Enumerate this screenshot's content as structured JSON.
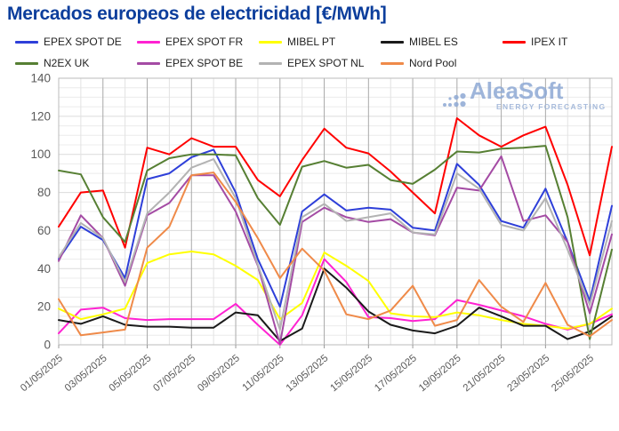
{
  "page": {
    "title": "Mercados europeos de electricidad [€/MWh]"
  },
  "watermark": {
    "brand": "AleaSoft",
    "tagline": "ENERGY FORECASTING",
    "color": "#8ea9d4"
  },
  "chart_data": {
    "type": "line",
    "title": "Mercados europeos de electricidad [€/MWh]",
    "xlabel": "",
    "ylabel": "€/MWh",
    "ylim": [
      0,
      140
    ],
    "y_ticks": [
      0,
      20,
      40,
      60,
      80,
      100,
      120,
      140
    ],
    "grid": {
      "horizontal_minor_step": 5,
      "vertical_daily": true,
      "darker_every_2_days": true
    },
    "legend_position": "top",
    "x": [
      "01/05/2025",
      "02/05/2025",
      "03/05/2025",
      "04/05/2025",
      "05/05/2025",
      "06/05/2025",
      "07/05/2025",
      "08/05/2025",
      "09/05/2025",
      "10/05/2025",
      "11/05/2025",
      "12/05/2025",
      "13/05/2025",
      "14/05/2025",
      "15/05/2025",
      "16/05/2025",
      "17/05/2025",
      "18/05/2025",
      "19/05/2025",
      "20/05/2025",
      "21/05/2025",
      "22/05/2025",
      "23/05/2025",
      "24/05/2025",
      "25/05/2025",
      "26/05/2025"
    ],
    "x_tick_labels": [
      "01/05/2025",
      "03/05/2025",
      "05/05/2025",
      "07/05/2025",
      "09/05/2025",
      "11/05/2025",
      "13/05/2025",
      "15/05/2025",
      "17/05/2025",
      "19/05/2025",
      "21/05/2025",
      "23/05/2025",
      "25/05/2025"
    ],
    "series": [
      {
        "name": "EPEX SPOT DE",
        "color": "#2e3fd9",
        "values": [
          45,
          62,
          55,
          35,
          87,
          90,
          98.5,
          102.5,
          80,
          45,
          20,
          70,
          79,
          70.5,
          72,
          71,
          61.5,
          60,
          95,
          84,
          65,
          61.5,
          82,
          54,
          23,
          73
        ]
      },
      {
        "name": "EPEX SPOT FR",
        "color": "#ff22d2",
        "values": [
          6,
          18.5,
          19.5,
          14,
          13,
          13.5,
          13.5,
          13.5,
          21.5,
          10.5,
          0,
          15.5,
          45,
          33,
          14.5,
          14,
          12.5,
          13.5,
          23.5,
          21,
          18,
          15,
          11,
          8,
          11,
          16
        ]
      },
      {
        "name": "MIBEL PT",
        "color": "#ffff00",
        "values": [
          19,
          13.5,
          16,
          19,
          43,
          47.5,
          49,
          47.5,
          41.5,
          34,
          13.5,
          22,
          48.5,
          41.5,
          33.5,
          16.5,
          15,
          14.5,
          17,
          15.5,
          13,
          11,
          10,
          8.5,
          11,
          19
        ]
      },
      {
        "name": "MIBEL ES",
        "color": "#1a1a1a",
        "values": [
          13,
          11,
          15,
          10.5,
          9.5,
          9.5,
          9,
          9,
          17,
          15.5,
          2,
          8.5,
          40,
          30,
          17.5,
          10.5,
          7.5,
          6,
          10,
          19.5,
          15,
          10,
          10,
          3,
          7,
          15
        ]
      },
      {
        "name": "IPEX IT",
        "color": "#ff0000",
        "values": [
          62,
          80,
          81,
          51,
          103.5,
          100,
          108.5,
          104,
          104,
          86.5,
          78,
          97,
          113.5,
          103.5,
          100.5,
          91,
          80,
          69,
          119,
          110,
          104,
          110,
          114.5,
          84,
          47,
          104
        ]
      },
      {
        "name": "N2EX UK",
        "color": "#567f33",
        "values": [
          91.5,
          89.5,
          67,
          54,
          91.5,
          98,
          100,
          100,
          99.5,
          77,
          63,
          93.5,
          96.5,
          93,
          94.5,
          86.5,
          84.5,
          92,
          101.5,
          101,
          103,
          103.5,
          104.5,
          67,
          3,
          50
        ]
      },
      {
        "name": "EPEX SPOT BE",
        "color": "#a44ba4",
        "values": [
          44,
          68,
          56,
          31,
          68,
          74.5,
          89,
          89,
          70,
          41.5,
          0.5,
          64.5,
          72,
          67,
          64.5,
          66,
          59,
          57.5,
          82.5,
          81,
          99,
          65,
          68,
          54,
          16.5,
          58
        ]
      },
      {
        "name": "EPEX SPOT NL",
        "color": "#b3b3b3",
        "values": [
          46,
          64,
          56,
          33,
          69,
          80,
          93,
          97.5,
          77,
          42,
          8,
          67,
          74,
          65,
          67,
          69,
          59,
          58,
          90,
          82,
          63,
          60,
          77,
          50,
          21,
          65
        ]
      },
      {
        "name": "Nord Pool",
        "color": "#ef8a49",
        "values": [
          24,
          5,
          6.5,
          8,
          51,
          62,
          89,
          90.5,
          75,
          56,
          35,
          50.5,
          39,
          16,
          13.5,
          18,
          31,
          10,
          13,
          34,
          20,
          12,
          32.5,
          10.5,
          4.5,
          13
        ]
      }
    ]
  }
}
